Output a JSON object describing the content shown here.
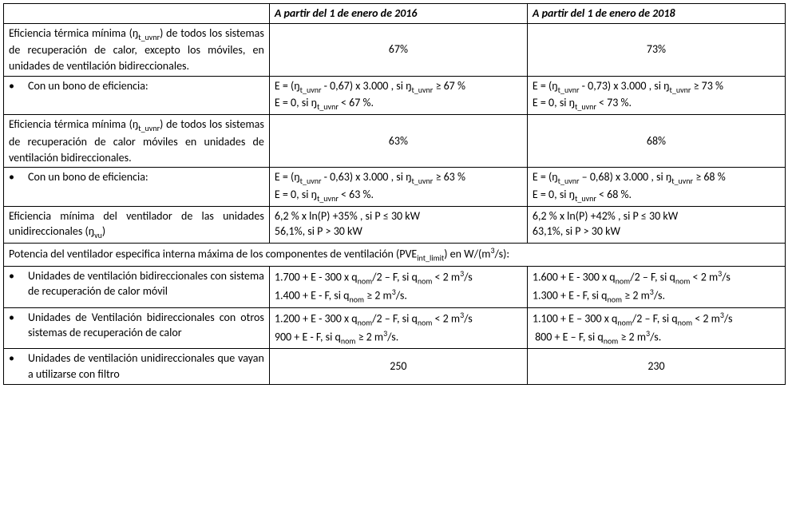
{
  "headers": {
    "blank": "",
    "col2016": "A partir del 1 de enero de 2016",
    "col2018": "A partir del 1 de enero de 2018"
  },
  "rows": {
    "r1": {
      "desc": "Eficiencia térmica mínima (ŋt_uvnr) de todos los sistemas de recuperación de calor, excepto los móviles, en unidades de ventilación bidireccionales.",
      "v2016": "67%",
      "v2018": "73%"
    },
    "r2": {
      "desc": "Con un bono de eficiencia:",
      "v2016a": "E = (ŋt_uvnr - 0,67) x  3.000 , si ŋt_uvnr ≥ 67 %",
      "v2016b": "E = 0, si ŋt_uvnr < 67 %.",
      "v2018a": "E = (ŋt_uvnr - 0,73) x  3.000 , si ŋt_uvnr ≥ 73 %",
      "v2018b": "E = 0, si ŋt_uvnr < 73 %."
    },
    "r3": {
      "desc": "Eficiencia térmica mínima (ŋt_uvnr) de todos los sistemas de recuperación de calor móviles en unidades de ventilación bidireccionales.",
      "v2016": "63%",
      "v2018": "68%"
    },
    "r4": {
      "desc": "Con un bono de eficiencia:",
      "v2016a": "E = (ŋt_uvnr - 0,63) x  3.000 , si ŋt_uvnr ≥ 63 %",
      "v2016b": "E = 0, si ŋt_uvnr < 63 %.",
      "v2018a": "E = (ŋt_uvnr – 0,68) x  3.000 , si ŋt_uvnr ≥ 68 %",
      "v2018b": "E = 0, si ŋt_uvnr < 68 %."
    },
    "r5": {
      "desc": "Eficiencia mínima del ventilador de las unidades unidireccionales (ŋvu)",
      "v2016a": "6,2 % x ln(P) +35% , si P ≤ 30 kW",
      "v2016b": "56,1%, si P > 30 kW",
      "v2018a": "6,2 % x ln(P) +42% , si P ≤ 30 kW",
      "v2018b": "63,1%, si P > 30 kW"
    },
    "r6": {
      "span": "Potencia del ventilador especifica interna máxima de los componentes de ventilación (PVEint_limit) en W/(m³/s):"
    },
    "r7": {
      "desc": "Unidades de ventilación bidireccionales con sistema de recuperación de calor móvil",
      "v2016a": "1.700 + E - 300 x qnom/2 – F, si qnom < 2 m³/s",
      "v2016b": "1.400 + E - F, si qnom ≥ 2 m³/s.",
      "v2018a": "1.600 + E - 300 x qnom/2 – F, si qnom < 2 m³/s",
      "v2018b": "1.300 + E - F, si qnom ≥ 2 m³/s."
    },
    "r8": {
      "desc": "Unidades de Ventilación bidireccionales con otros sistemas de recuperación de calor",
      "v2016a": "1.200 + E - 300 x qnom/2 – F, si qnom < 2 m³/s",
      "v2016b": "900 + E - F, si qnom ≥ 2 m³/s.",
      "v2018a": "1.100 + E – 300 x qnom/2 – F, si qnom < 2 m³/s",
      "v2018b": " 800 + E – F, si qnom ≥ 2 m³/s."
    },
    "r9": {
      "desc": "Unidades de ventilación unidireccionales que vayan a utilizarse con filtro",
      "v2016": "250",
      "v2018": "230"
    }
  }
}
